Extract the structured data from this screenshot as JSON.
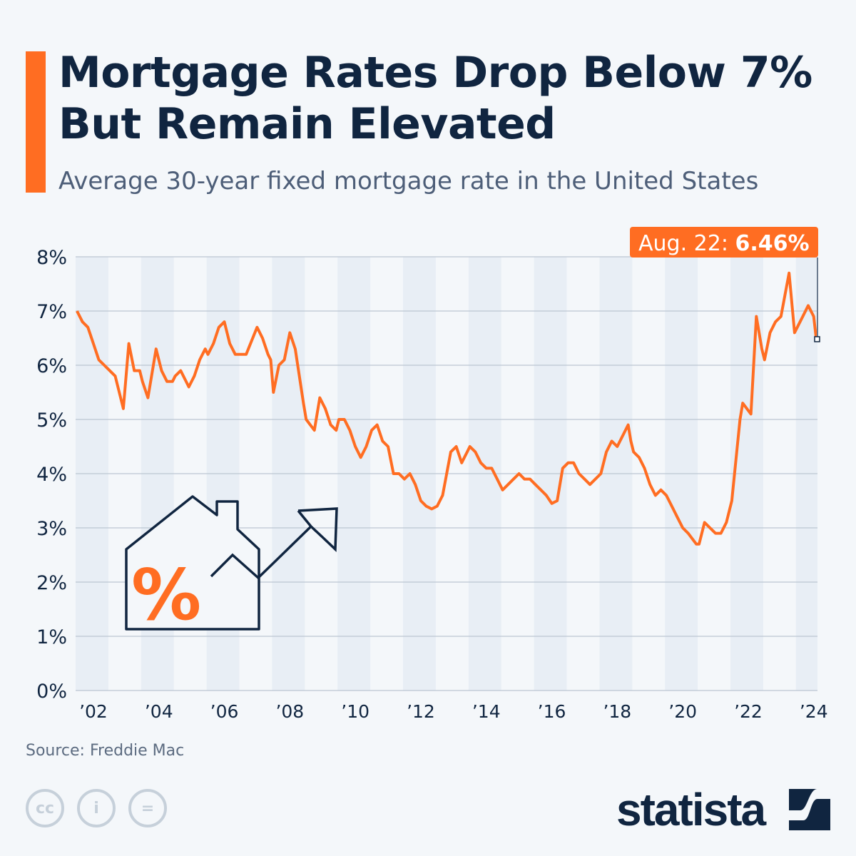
{
  "header": {
    "title_line1": "Mortgage Rates Drop Below 7%",
    "title_line2": "But Remain Elevated",
    "subtitle": "Average 30-year fixed mortgage rate in the United States"
  },
  "footer": {
    "source": "Source: Freddie Mac",
    "brand": "statista",
    "license_icons": [
      "cc-icon",
      "attribution-icon",
      "no-derivatives-icon"
    ]
  },
  "colors": {
    "line": "#ff6d22",
    "text": "#102540",
    "band": "#e8eef5"
  },
  "chart_data": {
    "type": "line",
    "title": "Mortgage Rates Drop Below 7% But Remain Elevated",
    "subtitle": "Average 30-year fixed mortgage rate in the United States",
    "ylim": [
      0,
      8
    ],
    "y_ticks": [
      "0%",
      "1%",
      "2%",
      "3%",
      "4%",
      "5%",
      "6%",
      "7%",
      "8%"
    ],
    "x_ticks": [
      "’02",
      "’04",
      "’06",
      "’08",
      "’10",
      "’12",
      "’14",
      "’16",
      "’18",
      "’20",
      "’22",
      "’24"
    ],
    "grid": true,
    "annotation": {
      "label": "Aug. 22: ",
      "value": "6.46%"
    },
    "series": [
      {
        "x": [
          "2002-01",
          "2002-03",
          "2002-05",
          "2002-07",
          "2002-09",
          "2002-11",
          "2003-01",
          "2003-03",
          "2003-06",
          "2003-08",
          "2003-10",
          "2003-12",
          "2004-01",
          "2004-03",
          "2004-06",
          "2004-08",
          "2004-10",
          "2004-12",
          "2005-01",
          "2005-03",
          "2005-06",
          "2005-08",
          "2005-10",
          "2005-12",
          "2006-01",
          "2006-03",
          "2006-05",
          "2006-07",
          "2006-09",
          "2006-11",
          "2007-01",
          "2007-03",
          "2007-07",
          "2007-09",
          "2007-11",
          "2007-12",
          "2008-01",
          "2008-03",
          "2008-05",
          "2008-07",
          "2008-09",
          "2008-12",
          "2009-01",
          "2009-04",
          "2009-06",
          "2009-08",
          "2009-10",
          "2009-12",
          "2010-01",
          "2010-03",
          "2010-05",
          "2010-07",
          "2010-09",
          "2010-11",
          "2011-01",
          "2011-03",
          "2011-05",
          "2011-07",
          "2011-09",
          "2011-11",
          "2012-01",
          "2012-03",
          "2012-05",
          "2012-07",
          "2012-09",
          "2012-11",
          "2013-01",
          "2013-03",
          "2013-06",
          "2013-08",
          "2013-10",
          "2013-12",
          "2014-01",
          "2014-03",
          "2014-05",
          "2014-07",
          "2014-09",
          "2014-11",
          "2015-01",
          "2015-03",
          "2015-05",
          "2015-07",
          "2015-09",
          "2015-11",
          "2016-01",
          "2016-03",
          "2016-05",
          "2016-07",
          "2016-09",
          "2016-11",
          "2017-01",
          "2017-03",
          "2017-05",
          "2017-07",
          "2017-09",
          "2017-11",
          "2018-01",
          "2018-03",
          "2018-05",
          "2018-07",
          "2018-11",
          "2018-12",
          "2019-01",
          "2019-03",
          "2019-05",
          "2019-07",
          "2019-09",
          "2019-11",
          "2020-01",
          "2020-03",
          "2020-05",
          "2020-07",
          "2020-09",
          "2020-12",
          "2021-01",
          "2021-03",
          "2021-05",
          "2021-07",
          "2021-09",
          "2021-11",
          "2022-01",
          "2022-04",
          "2022-05",
          "2022-08",
          "2022-10",
          "2022-12",
          "2023-01",
          "2023-03",
          "2023-05",
          "2023-07",
          "2023-10",
          "2023-12",
          "2024-01",
          "2024-03",
          "2024-05",
          "2024-07",
          "2024-08"
        ],
        "values": [
          7.0,
          6.8,
          6.7,
          6.4,
          6.1,
          6.0,
          5.9,
          5.8,
          5.2,
          6.4,
          5.9,
          5.9,
          5.7,
          5.4,
          6.3,
          5.9,
          5.7,
          5.7,
          5.8,
          5.9,
          5.6,
          5.8,
          6.1,
          6.3,
          6.2,
          6.4,
          6.7,
          6.8,
          6.4,
          6.2,
          6.2,
          6.2,
          6.7,
          6.5,
          6.2,
          6.1,
          5.5,
          6.0,
          6.1,
          6.6,
          6.3,
          5.3,
          5.0,
          4.8,
          5.4,
          5.2,
          4.9,
          4.8,
          5.0,
          5.0,
          4.8,
          4.5,
          4.3,
          4.5,
          4.8,
          4.9,
          4.6,
          4.5,
          4.0,
          4.0,
          3.9,
          4.0,
          3.8,
          3.5,
          3.4,
          3.35,
          3.4,
          3.6,
          4.4,
          4.5,
          4.2,
          4.4,
          4.5,
          4.4,
          4.2,
          4.1,
          4.1,
          3.9,
          3.7,
          3.8,
          3.9,
          4.0,
          3.9,
          3.9,
          3.8,
          3.7,
          3.6,
          3.45,
          3.5,
          4.1,
          4.2,
          4.2,
          4.0,
          3.9,
          3.8,
          3.9,
          4.0,
          4.4,
          4.6,
          4.5,
          4.9,
          4.6,
          4.4,
          4.3,
          4.1,
          3.8,
          3.6,
          3.7,
          3.6,
          3.4,
          3.2,
          3.0,
          2.9,
          2.7,
          2.7,
          3.1,
          3.0,
          2.9,
          2.9,
          3.1,
          3.5,
          5.0,
          5.3,
          5.1,
          6.9,
          6.3,
          6.1,
          6.6,
          6.8,
          6.9,
          7.7,
          6.6,
          6.7,
          6.9,
          7.1,
          6.9,
          6.46
        ]
      }
    ]
  }
}
